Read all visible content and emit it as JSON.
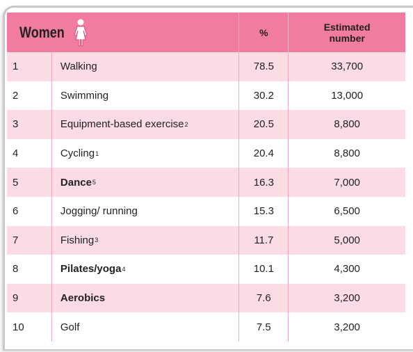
{
  "header": {
    "title": "Women",
    "pct": "%",
    "number": [
      "Estimated",
      "number"
    ]
  },
  "table": {
    "rows": [
      {
        "rank": "1",
        "activity": "Walking",
        "sup": null,
        "bold": false,
        "pct": "78.5",
        "number": "33,700"
      },
      {
        "rank": "2",
        "activity": "Swimming",
        "sup": null,
        "bold": false,
        "pct": "30.2",
        "number": "13,000"
      },
      {
        "rank": "3",
        "activity": "Equipment-based exercise",
        "sup": "2",
        "bold": false,
        "pct": "20.5",
        "number": "8,800"
      },
      {
        "rank": "4",
        "activity": "Cycling",
        "sup": "1",
        "bold": false,
        "pct": "20.4",
        "number": "8,800"
      },
      {
        "rank": "5",
        "activity": "Dance",
        "sup": "5",
        "bold": true,
        "pct": "16.3",
        "number": "7,000"
      },
      {
        "rank": "6",
        "activity": "Jogging/ running",
        "sup": null,
        "bold": false,
        "pct": "15.3",
        "number": "6,500"
      },
      {
        "rank": "7",
        "activity": "Fishing",
        "sup": "3",
        "bold": false,
        "pct": "11.7",
        "number": "5,000"
      },
      {
        "rank": "8",
        "activity": "Pilates/yoga",
        "sup": "4",
        "bold": true,
        "pct": "10.1",
        "number": "4,300"
      },
      {
        "rank": "9",
        "activity": "Aerobics",
        "sup": null,
        "bold": true,
        "pct": "7.6",
        "number": "3,200"
      },
      {
        "rank": "10",
        "activity": "Golf",
        "sup": null,
        "bold": false,
        "pct": "7.5",
        "number": "3,200"
      }
    ]
  }
}
